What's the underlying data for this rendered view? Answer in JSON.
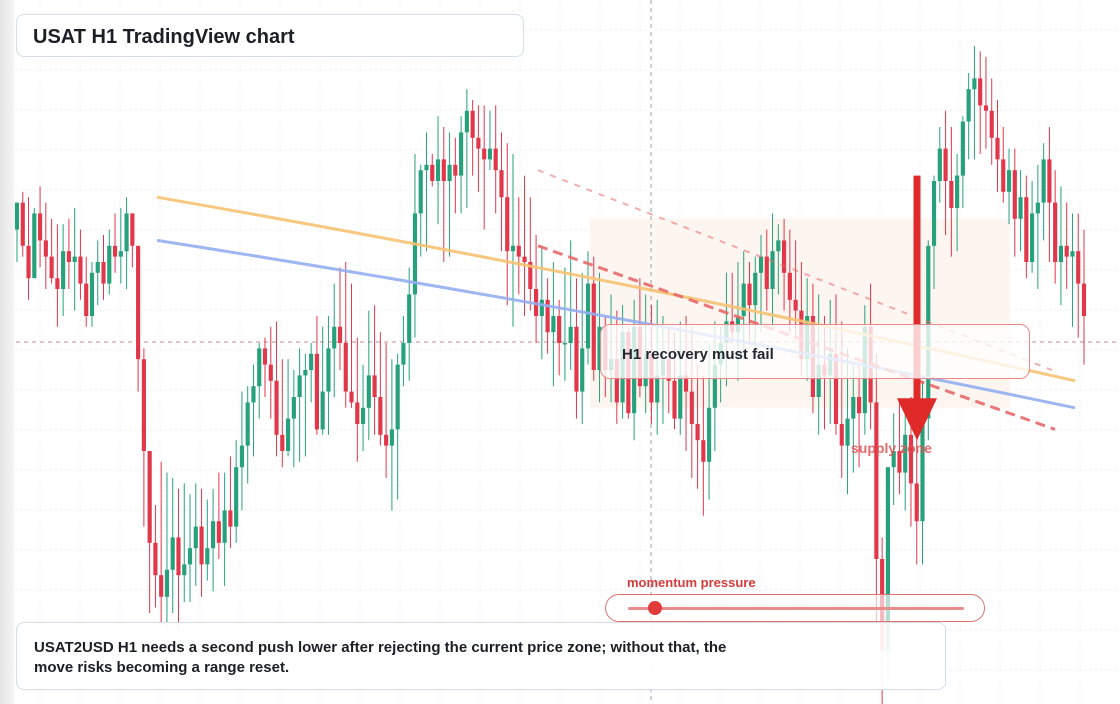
{
  "title": "USAT H1 TradingView chart",
  "callout": "H1 recovery must fail",
  "zone_label": "supply zone",
  "momentum": {
    "label": "momentum pressure",
    "level": 0.08
  },
  "note": "USAT2USD H1 needs a second push lower after rejecting the current price zone; without that, the move risks becoming a range reset.",
  "colors": {
    "bull": "#26a17b",
    "bear": "#e0374a",
    "ma_fast": "#f7c272",
    "ma_slow": "#93aef0",
    "trendline": "#e86a6a",
    "arrow": "#e02a2a",
    "zone_fill": "#fdf2ec"
  },
  "icons": {
    "arrow": "down-arrow-icon"
  },
  "chart_data": {
    "type": "candlestick",
    "symbol": "USAT2USD",
    "timeframe": "H1",
    "grid": true,
    "y_axis": "hidden",
    "x_axis": "hidden",
    "note": "No price or time scale is printed; values are in relative price units (0 = lowest visible, 100 = highest).",
    "candles_ohlc": [
      [
        76,
        81,
        70,
        81
      ],
      [
        81,
        83,
        71,
        73
      ],
      [
        73,
        82,
        63,
        67
      ],
      [
        67,
        80,
        68,
        79
      ],
      [
        79,
        84,
        69,
        74
      ],
      [
        74,
        81,
        65,
        71
      ],
      [
        71,
        78,
        66,
        67
      ],
      [
        67,
        77,
        58,
        65
      ],
      [
        65,
        77,
        60,
        72
      ],
      [
        72,
        78,
        65,
        70
      ],
      [
        70,
        80,
        61,
        71
      ],
      [
        71,
        76,
        63,
        66
      ],
      [
        66,
        71,
        58,
        60
      ],
      [
        60,
        70,
        58,
        68
      ],
      [
        68,
        74,
        62,
        70
      ],
      [
        70,
        75,
        63,
        66
      ],
      [
        66,
        76,
        64,
        73
      ],
      [
        73,
        79,
        68,
        71
      ],
      [
        71,
        80,
        66,
        72
      ],
      [
        72,
        82,
        65,
        79
      ],
      [
        79,
        78,
        69,
        73
      ],
      [
        73,
        72,
        46,
        52
      ],
      [
        52,
        54,
        21,
        35
      ],
      [
        35,
        34,
        5,
        18
      ],
      [
        18,
        25,
        6,
        12
      ],
      [
        12,
        33,
        3,
        8
      ],
      [
        8,
        31,
        2,
        13
      ],
      [
        13,
        30,
        5,
        19
      ],
      [
        19,
        28,
        2,
        12
      ],
      [
        12,
        29,
        7,
        14
      ],
      [
        14,
        27,
        7,
        17
      ],
      [
        17,
        29,
        10,
        21
      ],
      [
        21,
        28,
        8,
        14
      ],
      [
        14,
        26,
        11,
        17
      ],
      [
        17,
        28,
        9,
        22
      ],
      [
        22,
        31,
        15,
        18
      ],
      [
        18,
        31,
        10,
        24
      ],
      [
        24,
        34,
        17,
        21
      ],
      [
        21,
        37,
        18,
        32
      ],
      [
        32,
        46,
        24,
        36
      ],
      [
        36,
        47,
        29,
        44
      ],
      [
        44,
        51,
        34,
        47
      ],
      [
        47,
        55,
        41,
        54
      ],
      [
        54,
        56,
        45,
        51
      ],
      [
        51,
        58,
        41,
        48
      ],
      [
        48,
        59,
        34,
        38
      ],
      [
        38,
        52,
        32,
        35
      ],
      [
        35,
        52,
        34,
        41
      ],
      [
        41,
        50,
        32,
        45
      ],
      [
        45,
        54,
        33,
        49
      ],
      [
        49,
        53,
        34,
        50
      ],
      [
        50,
        55,
        44,
        53
      ],
      [
        53,
        60,
        38,
        39
      ],
      [
        39,
        58,
        38,
        46
      ],
      [
        46,
        60,
        38,
        54
      ],
      [
        54,
        66,
        45,
        58
      ],
      [
        58,
        69,
        50,
        55
      ],
      [
        55,
        70,
        43,
        46
      ],
      [
        46,
        66,
        43,
        44
      ],
      [
        44,
        56,
        33,
        40
      ],
      [
        40,
        51,
        35,
        43
      ],
      [
        43,
        61,
        37,
        49
      ],
      [
        49,
        62,
        38,
        45
      ],
      [
        45,
        57,
        36,
        38
      ],
      [
        38,
        55,
        30,
        36
      ],
      [
        36,
        52,
        24,
        39
      ],
      [
        39,
        53,
        26,
        51
      ],
      [
        51,
        60,
        47,
        55
      ],
      [
        55,
        69,
        48,
        64
      ],
      [
        64,
        90,
        56,
        79
      ],
      [
        79,
        88,
        71,
        87
      ],
      [
        87,
        94,
        72,
        88
      ],
      [
        88,
        90,
        84,
        85
      ],
      [
        85,
        97,
        77,
        89
      ],
      [
        89,
        95,
        70,
        85
      ],
      [
        85,
        94,
        71,
        88
      ],
      [
        88,
        93,
        79,
        86
      ],
      [
        86,
        97,
        79,
        94
      ],
      [
        94,
        102,
        80,
        98
      ],
      [
        98,
        100,
        86,
        93
      ],
      [
        93,
        99,
        83,
        91
      ],
      [
        91,
        99,
        76,
        89
      ],
      [
        89,
        98,
        87,
        91
      ],
      [
        91,
        99,
        79,
        87
      ],
      [
        87,
        94,
        72,
        82
      ],
      [
        82,
        92,
        62,
        72
      ],
      [
        72,
        90,
        58,
        73
      ],
      [
        73,
        82,
        64,
        71
      ],
      [
        71,
        86,
        60,
        70
      ],
      [
        70,
        82,
        61,
        65
      ],
      [
        65,
        75,
        55,
        60
      ],
      [
        60,
        73,
        52,
        63
      ],
      [
        63,
        67,
        53,
        57
      ],
      [
        57,
        70,
        47,
        60
      ],
      [
        60,
        63,
        49,
        55
      ],
      [
        55,
        69,
        48,
        55
      ],
      [
        55,
        74,
        50,
        58
      ],
      [
        58,
        67,
        41,
        46
      ],
      [
        46,
        68,
        40,
        54
      ],
      [
        54,
        72,
        51,
        66
      ],
      [
        66,
        71,
        48,
        50
      ],
      [
        50,
        68,
        44,
        58
      ],
      [
        58,
        60,
        45,
        50
      ],
      [
        50,
        64,
        44,
        52
      ],
      [
        52,
        61,
        40,
        44
      ],
      [
        44,
        62,
        41,
        57
      ],
      [
        57,
        58,
        41,
        42
      ],
      [
        42,
        63,
        37,
        58
      ],
      [
        58,
        67,
        45,
        47
      ],
      [
        47,
        64,
        42,
        53
      ],
      [
        53,
        62,
        40,
        44
      ],
      [
        44,
        63,
        38,
        49
      ],
      [
        49,
        60,
        40,
        52
      ],
      [
        52,
        58,
        42,
        48
      ],
      [
        48,
        57,
        39,
        41
      ],
      [
        41,
        59,
        38,
        49
      ],
      [
        49,
        60,
        35,
        46
      ],
      [
        46,
        58,
        30,
        40
      ],
      [
        40,
        51,
        28,
        37
      ],
      [
        37,
        49,
        23,
        33
      ],
      [
        33,
        55,
        26,
        43
      ],
      [
        43,
        59,
        35,
        51
      ],
      [
        51,
        58,
        44,
        55
      ],
      [
        55,
        68,
        47,
        59
      ],
      [
        59,
        68,
        55,
        57
      ],
      [
        57,
        70,
        48,
        60
      ],
      [
        60,
        72,
        52,
        66
      ],
      [
        66,
        70,
        55,
        62
      ],
      [
        62,
        71,
        54,
        68
      ],
      [
        68,
        75,
        57,
        71
      ],
      [
        71,
        76,
        61,
        65
      ],
      [
        65,
        79,
        58,
        72
      ],
      [
        72,
        77,
        64,
        74
      ],
      [
        74,
        78,
        61,
        68
      ],
      [
        68,
        76,
        57,
        63
      ],
      [
        63,
        74,
        56,
        61
      ],
      [
        61,
        70,
        49,
        52
      ],
      [
        52,
        67,
        48,
        60
      ],
      [
        60,
        66,
        42,
        45
      ],
      [
        45,
        64,
        38,
        51
      ],
      [
        51,
        60,
        39,
        49
      ],
      [
        49,
        63,
        40,
        53
      ],
      [
        53,
        64,
        38,
        40
      ],
      [
        40,
        59,
        30,
        36
      ],
      [
        36,
        54,
        27,
        41
      ],
      [
        41,
        51,
        31,
        45
      ],
      [
        45,
        51,
        32,
        42
      ],
      [
        42,
        62,
        38,
        58
      ],
      [
        58,
        66,
        39,
        44
      ],
      [
        44,
        53,
        3,
        15
      ],
      [
        15,
        19,
        -12,
        -2
      ],
      [
        -2,
        28,
        -8,
        32
      ],
      [
        32,
        42,
        25,
        35
      ],
      [
        35,
        44,
        27,
        31
      ],
      [
        31,
        42,
        24,
        38
      ],
      [
        38,
        45,
        21,
        29
      ],
      [
        29,
        49,
        14,
        22
      ],
      [
        22,
        48,
        14,
        41
      ],
      [
        41,
        74,
        37,
        73
      ],
      [
        73,
        86,
        65,
        85
      ],
      [
        85,
        95,
        81,
        91
      ],
      [
        91,
        98,
        75,
        85
      ],
      [
        85,
        95,
        71,
        80
      ],
      [
        80,
        90,
        72,
        86
      ],
      [
        86,
        97,
        80,
        96
      ],
      [
        96,
        105,
        89,
        102
      ],
      [
        102,
        110,
        89,
        104
      ],
      [
        104,
        109,
        90,
        99
      ],
      [
        99,
        108,
        91,
        98
      ],
      [
        98,
        104,
        88,
        93
      ],
      [
        93,
        100,
        83,
        89
      ],
      [
        89,
        95,
        81,
        83
      ],
      [
        83,
        91,
        77,
        87
      ],
      [
        87,
        91,
        71,
        78
      ],
      [
        78,
        87,
        72,
        82
      ],
      [
        82,
        86,
        67,
        70
      ],
      [
        70,
        85,
        68,
        79
      ],
      [
        79,
        88,
        65,
        81
      ],
      [
        81,
        92,
        74,
        89
      ],
      [
        89,
        95,
        70,
        81
      ],
      [
        81,
        87,
        66,
        70
      ],
      [
        70,
        84,
        62,
        73
      ],
      [
        73,
        81,
        65,
        71
      ],
      [
        71,
        79,
        58,
        72
      ],
      [
        72,
        79,
        56,
        66
      ],
      [
        66,
        76,
        51,
        60
      ]
    ],
    "moving_averages": [
      {
        "from": 82,
        "to": 48
      },
      {
        "from": 74,
        "to": 43
      }
    ],
    "trendlines": [
      {
        "style": "dashed",
        "from": 73,
        "to": 39
      },
      {
        "style": "dotted",
        "from": 87,
        "to": 50
      }
    ],
    "supply_zone": {
      "low": 43,
      "high": 78
    },
    "projection": {
      "direction": "down",
      "from": 86,
      "to": 37
    }
  }
}
